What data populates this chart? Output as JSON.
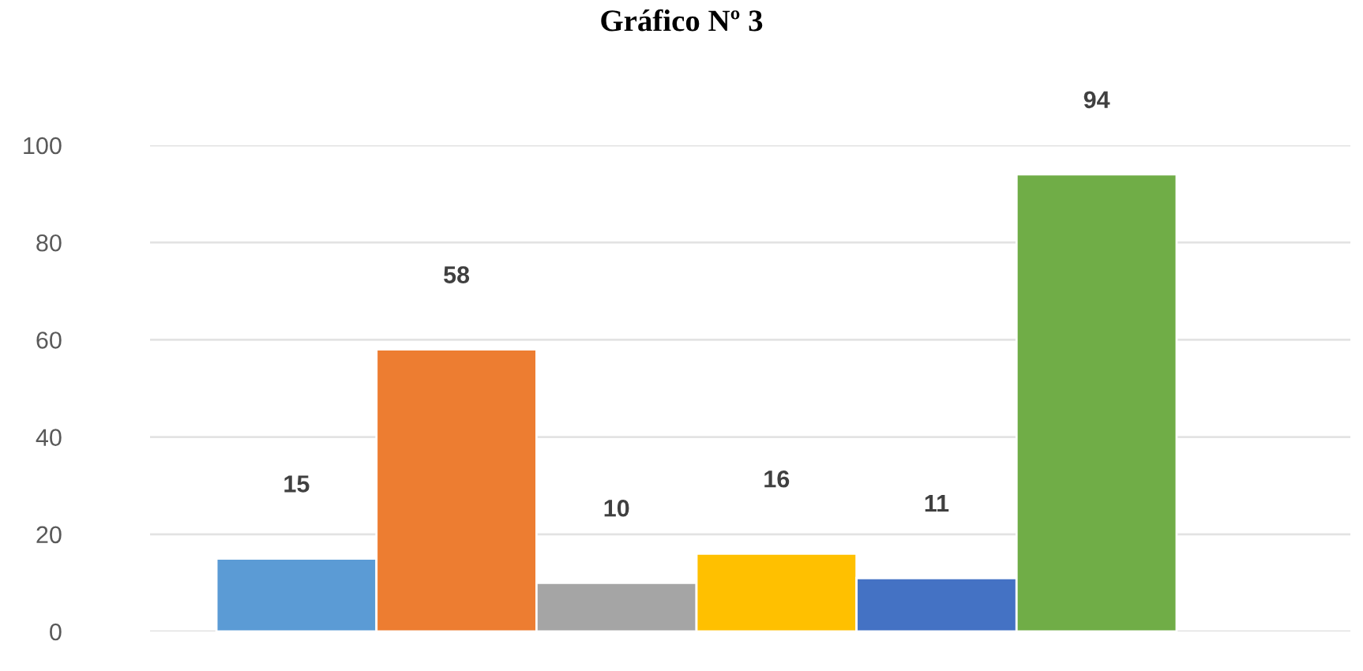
{
  "chart_data": {
    "type": "bar",
    "title": "Gráfico Nº 3",
    "categories": [
      null,
      null,
      null,
      null,
      null,
      null
    ],
    "values": [
      15,
      58,
      10,
      16,
      11,
      94
    ],
    "colors": [
      "#5b9bd5",
      "#ed7d31",
      "#a5a5a5",
      "#ffc000",
      "#4472c4",
      "#70ad47"
    ],
    "ylim": [
      0,
      100
    ],
    "yticks": [
      0,
      20,
      40,
      60,
      80,
      100
    ],
    "grid": "y",
    "data_labels": true,
    "tick_labels": "y"
  }
}
